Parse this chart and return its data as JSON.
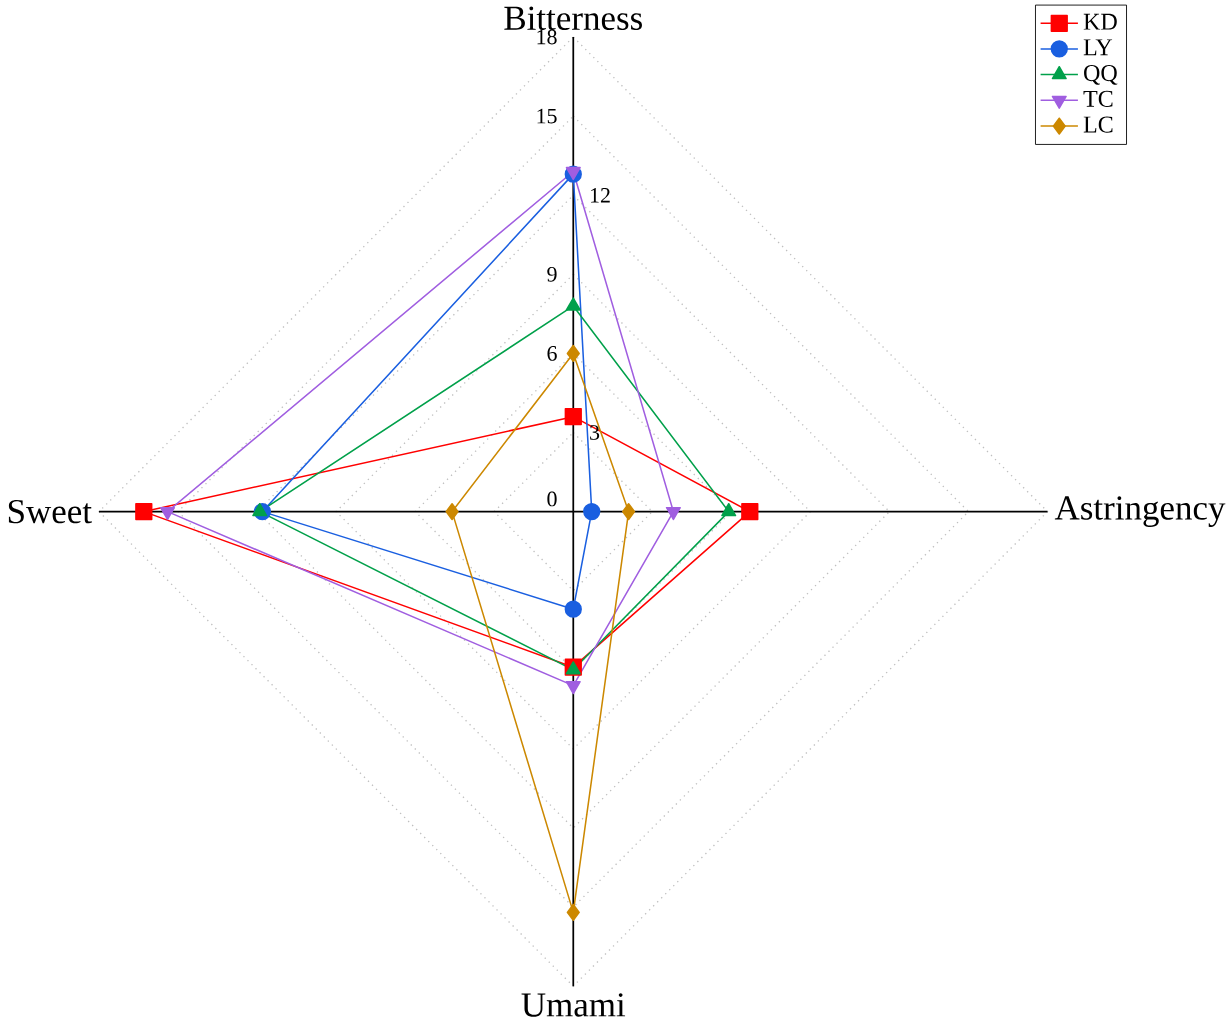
{
  "chart_data": {
    "type": "radar",
    "categories": [
      "Bitterness",
      "Astringency",
      "Umami",
      "Sweet"
    ],
    "ylim": [
      0,
      18
    ],
    "yticks": [
      0,
      3,
      6,
      9,
      12,
      15,
      18
    ],
    "grid": true,
    "legend": "top right",
    "series": [
      {
        "name": "KD",
        "color": "#ff0000",
        "marker": "square",
        "values": [
          3.6,
          6.7,
          5.9,
          16.3
        ]
      },
      {
        "name": "LY",
        "color": "#1a5fe0",
        "marker": "circle",
        "values": [
          12.8,
          0.7,
          3.7,
          11.8
        ]
      },
      {
        "name": "QQ",
        "color": "#00a04a",
        "marker": "triangle",
        "values": [
          7.8,
          5.9,
          6.0,
          11.9
        ]
      },
      {
        "name": "TC",
        "color": "#a05ee0",
        "marker": "triangle down",
        "values": [
          12.9,
          3.8,
          6.6,
          15.4
        ]
      },
      {
        "name": "LC",
        "color": "#cc8800",
        "marker": "diamond",
        "values": [
          6.0,
          2.1,
          15.2,
          4.6
        ]
      }
    ]
  }
}
